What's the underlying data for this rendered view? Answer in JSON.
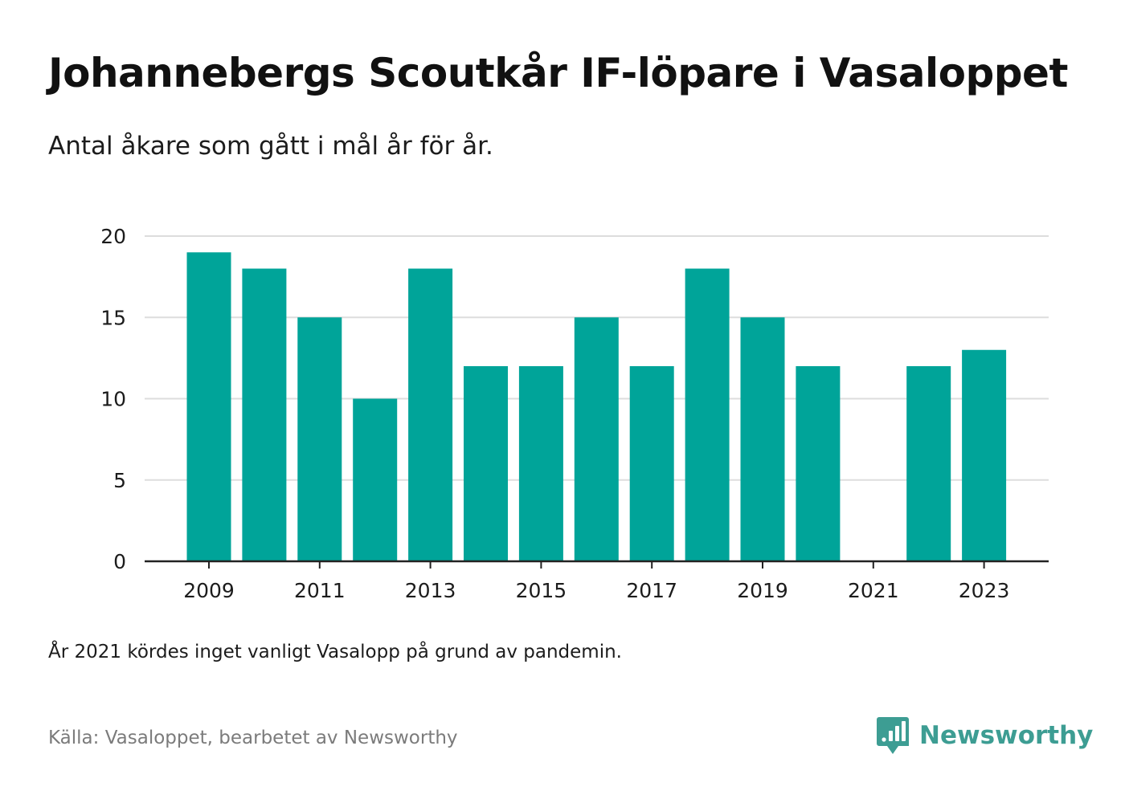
{
  "header": {
    "title": "Johannebergs Scoutkår IF-löpare i Vasaloppet",
    "subtitle": "Antal åkare som gått i mål år för år."
  },
  "footer": {
    "note": "År 2021 kördes inget vanligt Vasalopp på grund av pandemin.",
    "source": "Källa: Vasaloppet, bearbetet av Newsworthy",
    "brand_name": "Newsworthy",
    "brand_icon": "newsworthy-logo-icon"
  },
  "colors": {
    "bar": "#00a499",
    "brand": "#3d9d93",
    "grid": "#dddddd",
    "axis": "#222222",
    "text": "#1c1c1c",
    "source": "#7b7b7b"
  },
  "chart_data": {
    "type": "bar",
    "categories": [
      "2009",
      "2010",
      "2011",
      "2012",
      "2013",
      "2014",
      "2015",
      "2016",
      "2017",
      "2018",
      "2019",
      "2020",
      "2021",
      "2022",
      "2023"
    ],
    "values": [
      19,
      18,
      15,
      10,
      18,
      12,
      12,
      15,
      12,
      18,
      15,
      12,
      null,
      12,
      13
    ],
    "x_tick_labels": [
      "2009",
      "2011",
      "2013",
      "2015",
      "2017",
      "2019",
      "2021",
      "2023"
    ],
    "y_ticks": [
      0,
      5,
      10,
      15,
      20
    ],
    "ylim": [
      0,
      20
    ],
    "grid": true,
    "legend": "none"
  }
}
